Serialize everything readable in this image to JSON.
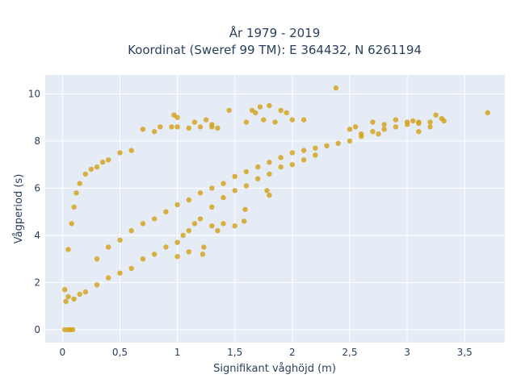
{
  "chart_data": {
    "type": "scatter",
    "title_line1": "År 1979 - 2019",
    "title_line2": "Koordinat (Sweref 99 TM): E 364432, N 6261194",
    "xlabel": "Signifikant våghöjd (m)",
    "ylabel": "Vågperiod (s)",
    "xlim": [
      -0.15,
      3.85
    ],
    "ylim": [
      -0.55,
      10.8
    ],
    "xticks": [
      0,
      0.5,
      1,
      1.5,
      2,
      2.5,
      3,
      3.5
    ],
    "xtick_labels": [
      "0",
      "0,5",
      "1",
      "1,5",
      "2",
      "2,5",
      "3",
      "3,5"
    ],
    "yticks": [
      0,
      2,
      4,
      6,
      8,
      10
    ],
    "ytick_labels": [
      "0",
      "2",
      "4",
      "6",
      "8",
      "10"
    ],
    "grid": true,
    "colors": {
      "marker": "#d4a520",
      "plot_bg": "#e5ecf6",
      "grid": "#ffffff"
    },
    "series": [
      {
        "points": [
          [
            0.02,
            0
          ],
          [
            0.05,
            0
          ],
          [
            0.07,
            0
          ],
          [
            0.09,
            0
          ],
          [
            0.02,
            1.7
          ],
          [
            0.03,
            1.2
          ],
          [
            0.05,
            1.4
          ],
          [
            0.1,
            1.3
          ],
          [
            0.15,
            1.5
          ],
          [
            0.2,
            1.6
          ],
          [
            0.3,
            1.9
          ],
          [
            0.4,
            2.2
          ],
          [
            0.5,
            2.4
          ],
          [
            0.6,
            2.6
          ],
          [
            0.05,
            3.4
          ],
          [
            0.08,
            4.5
          ],
          [
            0.1,
            5.2
          ],
          [
            0.12,
            5.8
          ],
          [
            0.15,
            6.2
          ],
          [
            0.2,
            6.6
          ],
          [
            0.25,
            6.8
          ],
          [
            0.3,
            6.9
          ],
          [
            0.35,
            7.1
          ],
          [
            0.4,
            7.2
          ],
          [
            0.5,
            7.5
          ],
          [
            0.6,
            7.6
          ],
          [
            0.7,
            8.5
          ],
          [
            0.8,
            8.4
          ],
          [
            0.85,
            8.6
          ],
          [
            0.95,
            8.6
          ],
          [
            1.0,
            8.6
          ],
          [
            1.1,
            8.55
          ],
          [
            1.2,
            8.6
          ],
          [
            1.3,
            8.6
          ],
          [
            1.35,
            8.55
          ],
          [
            0.97,
            9.1
          ],
          [
            1.0,
            9.0
          ],
          [
            1.15,
            8.8
          ],
          [
            1.25,
            8.9
          ],
          [
            1.3,
            8.7
          ],
          [
            0.3,
            3.0
          ],
          [
            0.4,
            3.5
          ],
          [
            0.5,
            3.8
          ],
          [
            0.6,
            4.2
          ],
          [
            0.7,
            4.5
          ],
          [
            0.8,
            4.7
          ],
          [
            0.9,
            5.0
          ],
          [
            1.0,
            5.3
          ],
          [
            1.1,
            5.5
          ],
          [
            1.2,
            5.8
          ],
          [
            1.3,
            6.0
          ],
          [
            1.4,
            6.2
          ],
          [
            1.5,
            6.5
          ],
          [
            1.6,
            6.7
          ],
          [
            1.7,
            6.9
          ],
          [
            1.8,
            7.1
          ],
          [
            1.9,
            7.3
          ],
          [
            2.0,
            7.5
          ],
          [
            2.1,
            7.6
          ],
          [
            2.2,
            7.7
          ],
          [
            2.3,
            7.8
          ],
          [
            2.4,
            7.9
          ],
          [
            2.5,
            8.0
          ],
          [
            2.6,
            8.2
          ],
          [
            2.7,
            8.4
          ],
          [
            2.8,
            8.5
          ],
          [
            2.9,
            8.6
          ],
          [
            3.0,
            8.7
          ],
          [
            3.1,
            8.8
          ],
          [
            3.2,
            8.8
          ],
          [
            0.7,
            3.0
          ],
          [
            0.8,
            3.2
          ],
          [
            0.9,
            3.5
          ],
          [
            1.0,
            3.7
          ],
          [
            1.05,
            4.0
          ],
          [
            1.1,
            4.2
          ],
          [
            1.15,
            4.5
          ],
          [
            1.2,
            4.7
          ],
          [
            1.3,
            5.2
          ],
          [
            1.4,
            5.6
          ],
          [
            1.5,
            5.9
          ],
          [
            1.6,
            6.1
          ],
          [
            1.7,
            6.4
          ],
          [
            1.8,
            6.6
          ],
          [
            1.9,
            6.9
          ],
          [
            2.0,
            7.0
          ],
          [
            2.1,
            7.2
          ],
          [
            2.2,
            7.4
          ],
          [
            1.0,
            3.1
          ],
          [
            1.1,
            3.3
          ],
          [
            1.22,
            3.2
          ],
          [
            1.23,
            3.5
          ],
          [
            1.3,
            4.4
          ],
          [
            1.35,
            4.2
          ],
          [
            1.4,
            4.5
          ],
          [
            1.5,
            4.4
          ],
          [
            1.58,
            4.6
          ],
          [
            1.59,
            5.1
          ],
          [
            1.78,
            5.9
          ],
          [
            1.8,
            5.7
          ],
          [
            1.45,
            9.3
          ],
          [
            1.65,
            9.3
          ],
          [
            1.68,
            9.2
          ],
          [
            1.72,
            9.45
          ],
          [
            1.8,
            9.5
          ],
          [
            1.9,
            9.3
          ],
          [
            1.95,
            9.2
          ],
          [
            2.0,
            8.9
          ],
          [
            2.1,
            8.9
          ],
          [
            1.75,
            8.9
          ],
          [
            1.85,
            8.8
          ],
          [
            1.6,
            8.8
          ],
          [
            2.38,
            10.25
          ],
          [
            2.5,
            8.5
          ],
          [
            2.55,
            8.6
          ],
          [
            2.7,
            8.8
          ],
          [
            2.8,
            8.7
          ],
          [
            2.9,
            8.9
          ],
          [
            3.0,
            8.8
          ],
          [
            3.05,
            8.85
          ],
          [
            3.1,
            8.75
          ],
          [
            3.25,
            9.1
          ],
          [
            3.3,
            8.95
          ],
          [
            3.32,
            8.85
          ],
          [
            3.2,
            8.6
          ],
          [
            3.1,
            8.4
          ],
          [
            2.75,
            8.3
          ],
          [
            2.6,
            8.3
          ],
          [
            3.7,
            9.2
          ]
        ]
      }
    ]
  }
}
